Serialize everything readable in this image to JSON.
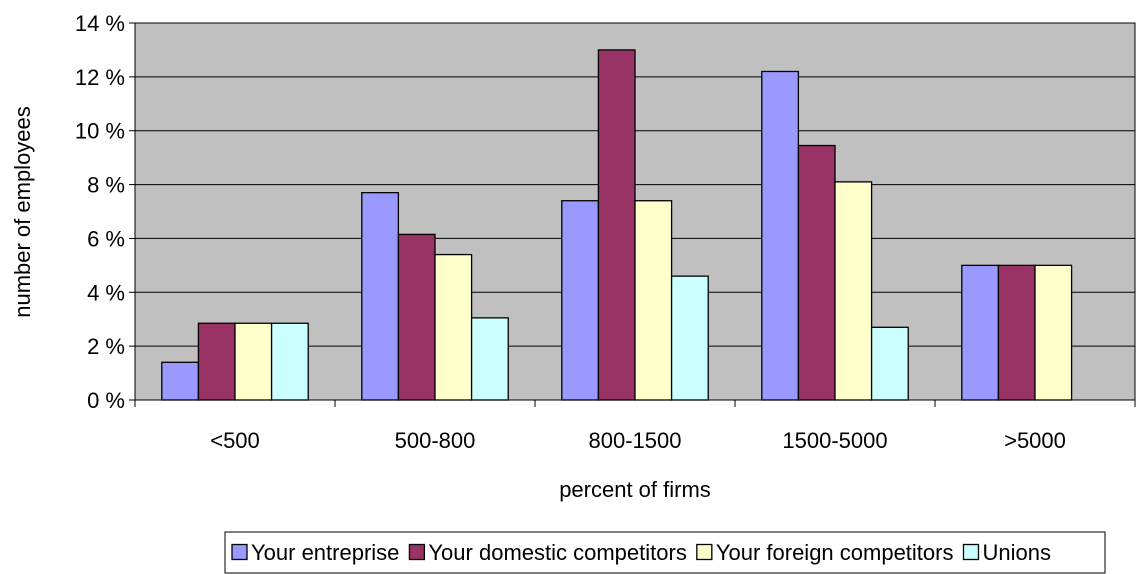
{
  "chart_data": {
    "type": "bar",
    "title": "",
    "xlabel": "percent of firms",
    "ylabel": "number of employees",
    "categories": [
      "<500",
      "500-800",
      "800-1500",
      "1500-5000",
      ">5000"
    ],
    "series": [
      {
        "name": "Your entreprise",
        "values": [
          1.4,
          7.7,
          7.4,
          12.2,
          5.0
        ]
      },
      {
        "name": "Your domestic competitors",
        "values": [
          2.85,
          6.15,
          13.0,
          9.45,
          5.0
        ]
      },
      {
        "name": "Your foreign competitors",
        "values": [
          2.85,
          5.4,
          7.4,
          8.1,
          5.0
        ]
      },
      {
        "name": "Unions",
        "values": [
          2.85,
          3.05,
          4.6,
          2.7,
          null
        ]
      }
    ],
    "ylim": [
      0,
      14
    ],
    "yticks": [
      0,
      2,
      4,
      6,
      8,
      10,
      12,
      14
    ],
    "ytick_labels": [
      "0 %",
      "2 %",
      "4 %",
      "6 %",
      "8 %",
      "10 %",
      "12 %",
      "14 %"
    ],
    "grid": true,
    "legend_position": "bottom",
    "colors": {
      "plot_background": "#C0C0C0",
      "gridline": "#000000",
      "bar_outline": "#000000",
      "series": [
        "#9999FF",
        "#993366",
        "#FFFFCC",
        "#CCFFFF"
      ]
    }
  }
}
